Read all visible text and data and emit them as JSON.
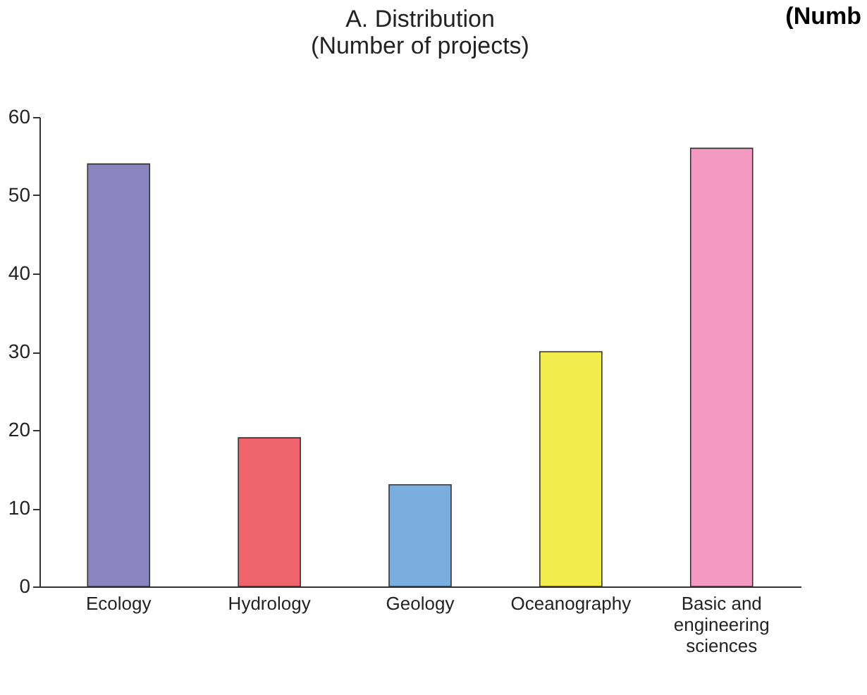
{
  "chart_data": {
    "type": "bar",
    "title": "A. Distribution",
    "subtitle": "(Number of projects)",
    "categories": [
      "Ecology",
      "Hydrology",
      "Geology",
      "Oceanography",
      "Basic and engineering sciences"
    ],
    "values": [
      54,
      19,
      13,
      30,
      56
    ],
    "colors": [
      "#8a84c0",
      "#f0646c",
      "#7aaede",
      "#f2ec4c",
      "#f49ac2"
    ],
    "ylim": [
      0,
      60
    ],
    "yticks": [
      0,
      10,
      20,
      30,
      40,
      50,
      60
    ],
    "grid": false,
    "annotations": [
      "(Numb"
    ]
  }
}
